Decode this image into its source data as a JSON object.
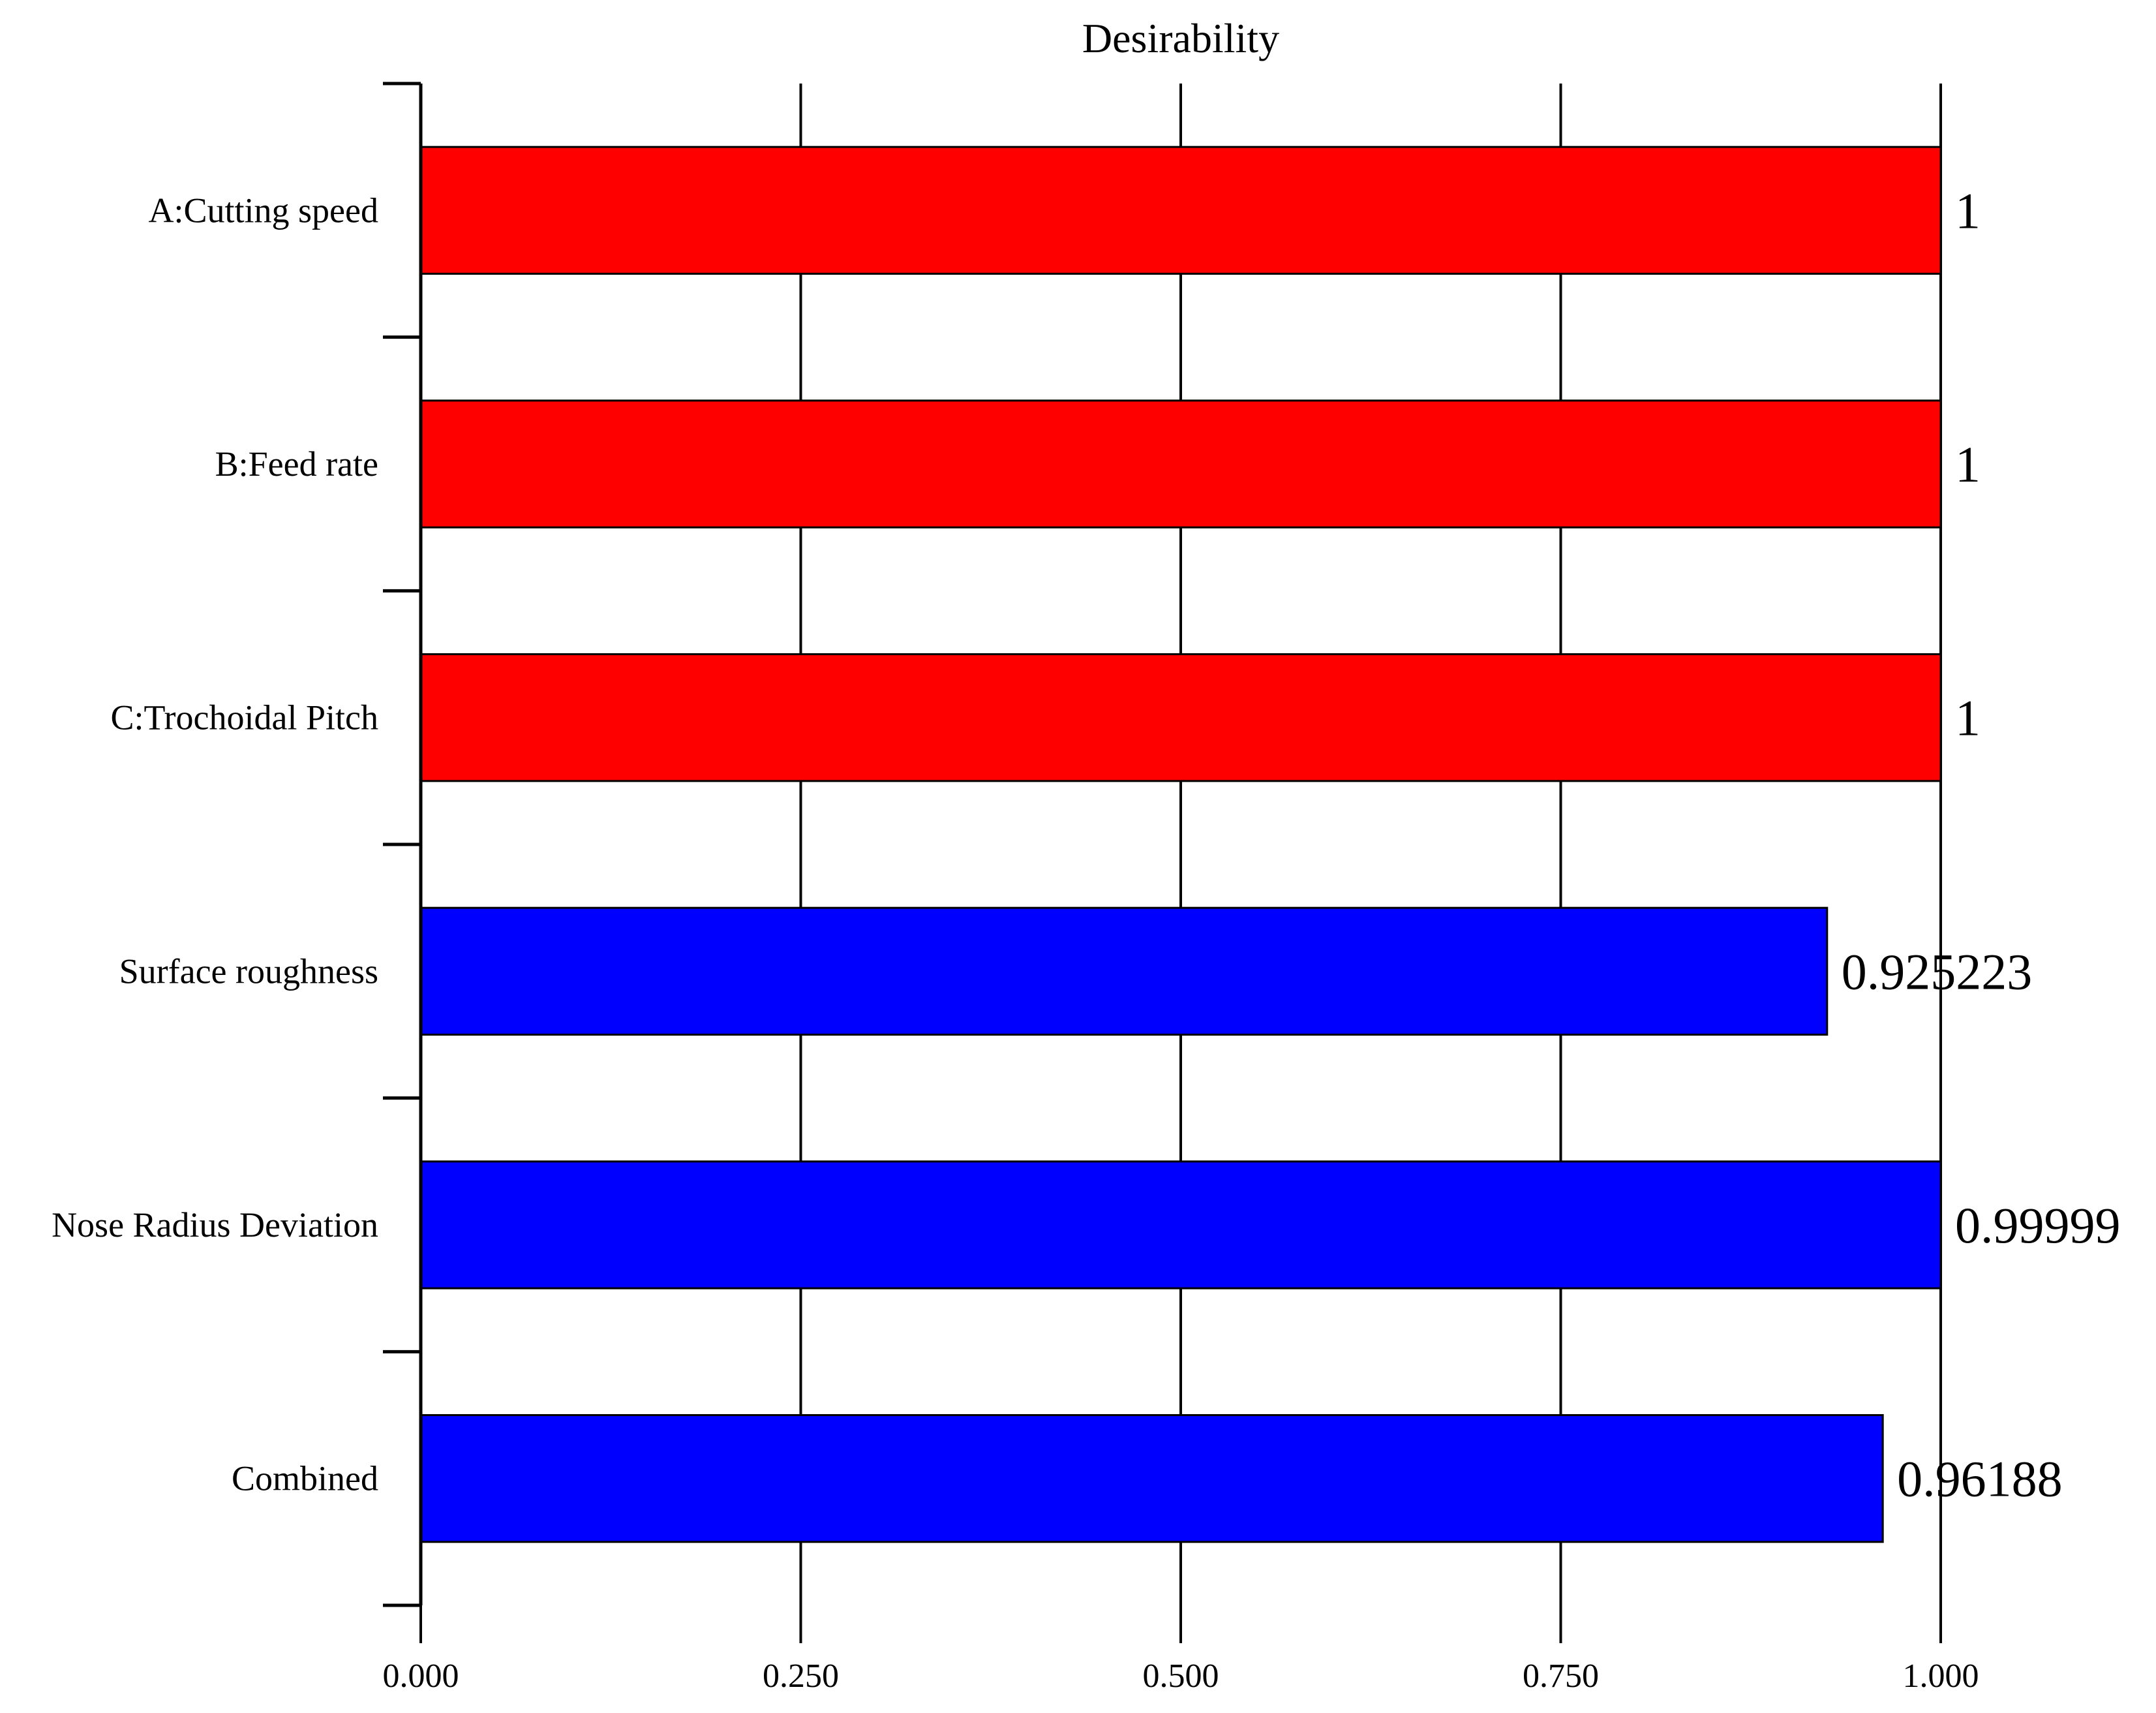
{
  "chart_data": {
    "type": "bar",
    "orientation": "horizontal",
    "title": "Desirability",
    "xlabel": "",
    "ylabel": "",
    "xlim": [
      0,
      1
    ],
    "grid": true,
    "categories": [
      "A:Cutting speed",
      "B:Feed rate",
      "C:Trochoidal Pitch",
      "Surface roughness",
      "Nose Radius Deviation",
      "Combined"
    ],
    "values": [
      1,
      1,
      1,
      0.925223,
      0.99999,
      0.96188
    ],
    "value_labels": [
      "1",
      "1",
      "1",
      "0.925223",
      "0.99999",
      "0.96188"
    ],
    "bar_colors": [
      "#ff0000",
      "#ff0000",
      "#ff0000",
      "#0000ff",
      "#0000ff",
      "#0000ff"
    ],
    "x_ticks": [
      0,
      0.25,
      0.5,
      0.75,
      1
    ],
    "x_tick_labels": [
      "0.000",
      "0.250",
      "0.500",
      "0.750",
      "1.000"
    ]
  }
}
